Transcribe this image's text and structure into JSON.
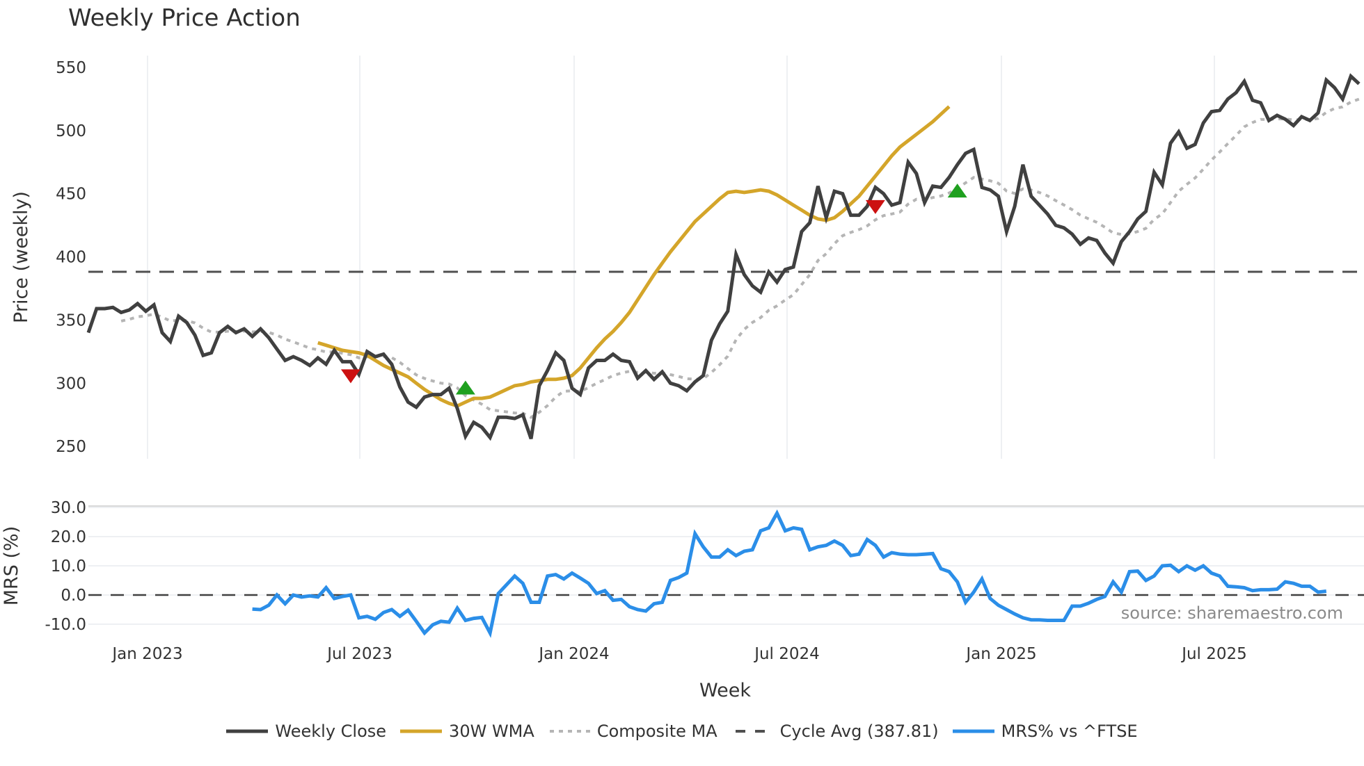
{
  "title": "Weekly Price Action",
  "price_panel": {
    "ylabel": "Price (weekly)",
    "yticks": [
      "550",
      "500",
      "450",
      "400",
      "350",
      "300",
      "250"
    ],
    "ytick_values": [
      550,
      500,
      450,
      400,
      350,
      300,
      250
    ]
  },
  "mrs_panel": {
    "ylabel": "MRS (%)",
    "yticks": [
      "30.0",
      "20.0",
      "10.0",
      "0.0",
      "-10.0"
    ],
    "ytick_values": [
      30,
      20,
      10,
      0,
      -10
    ],
    "source": "source: sharemaestro.com"
  },
  "xaxis": {
    "label": "Week",
    "ticks": [
      "Jan 2023",
      "Jul 2023",
      "Jan 2024",
      "Jul 2024",
      "Jan 2025",
      "Jul 2025"
    ]
  },
  "legend": {
    "items": [
      {
        "label": "Weekly Close",
        "style": "solid",
        "color": "#404040"
      },
      {
        "label": "30W WMA",
        "style": "solid",
        "color": "#D4A52A"
      },
      {
        "label": "Composite MA",
        "style": "dotted",
        "color": "#B5B5B5"
      },
      {
        "label": "Cycle Avg (387.81)",
        "style": "dashed",
        "color": "#505050"
      },
      {
        "label": "MRS% vs ^FTSE",
        "style": "solid",
        "color": "#2B8EE8"
      }
    ]
  },
  "colors": {
    "close": "#404040",
    "wma": "#D4A52A",
    "composite": "#B5B5B5",
    "cycle": "#505050",
    "mrs": "#2B8EE8",
    "buy_marker": "#1FA01F",
    "sell_marker": "#CC1111",
    "grid": "#EEF0F3"
  },
  "chart_data": [
    {
      "type": "line",
      "title": "Weekly Price Action",
      "xlabel": "Week",
      "ylabel": "Price (weekly)",
      "ylim": [
        240,
        555
      ],
      "x_range": [
        "2022-10",
        "2025-10"
      ],
      "x_ticks": [
        "Jan 2023",
        "Jul 2023",
        "Jan 2024",
        "Jul 2024",
        "Jan 2025",
        "Jul 2025"
      ],
      "grid": "vertical",
      "legend_position": "bottom",
      "cycle_average": 387.81,
      "series": [
        {
          "name": "Weekly Close",
          "x_week_index": [
            0,
            1,
            2,
            3,
            4,
            5,
            6,
            7,
            8,
            9,
            10,
            11,
            12,
            13,
            14,
            15,
            16,
            17,
            18,
            19,
            20,
            21,
            22,
            23,
            24,
            25,
            26,
            27,
            28,
            29,
            30,
            31,
            32,
            33,
            34,
            35,
            36,
            37,
            38,
            39,
            40,
            41,
            42,
            43,
            44,
            45,
            46,
            47,
            48,
            49,
            50,
            51,
            52,
            53,
            54,
            55,
            56,
            57,
            58,
            59,
            60,
            61,
            62,
            63,
            64,
            65,
            66,
            67,
            68,
            69,
            70,
            71,
            72,
            73,
            74,
            75,
            76,
            77,
            78,
            79,
            80,
            81,
            82,
            83,
            84,
            85,
            86,
            87,
            88,
            89,
            90,
            91,
            92,
            93,
            94,
            95,
            96,
            97,
            98,
            99,
            100,
            101,
            102,
            103,
            104,
            105,
            106,
            107,
            108,
            109,
            110,
            111,
            112,
            113,
            114,
            115,
            116,
            117,
            118,
            119,
            120,
            121,
            122,
            123,
            124,
            125,
            126,
            127,
            128,
            129,
            130,
            131,
            132,
            133,
            134,
            135,
            136,
            137,
            138,
            139,
            140,
            141,
            142,
            143,
            144,
            145,
            146,
            147,
            148,
            149,
            150,
            151,
            152,
            153,
            154,
            155
          ],
          "values": [
            340,
            359,
            359,
            360,
            356,
            358,
            363,
            357,
            362,
            340,
            333,
            353,
            348,
            338,
            322,
            324,
            340,
            345,
            340,
            343,
            337,
            343,
            336,
            327,
            318,
            321,
            318,
            314,
            320,
            315,
            326,
            317,
            317,
            307,
            325,
            321,
            323,
            315,
            297,
            285,
            281,
            289,
            291,
            291,
            296,
            280,
            258,
            269,
            265,
            257,
            273,
            273,
            272,
            275,
            256,
            298,
            310,
            324,
            318,
            296,
            291,
            312,
            318,
            318,
            323,
            318,
            317,
            304,
            310,
            303,
            309,
            300,
            298,
            294,
            301,
            306,
            334,
            347,
            357,
            402,
            386,
            377,
            372,
            388,
            380,
            390,
            392,
            420,
            427,
            456,
            431,
            452,
            450,
            433,
            433,
            440,
            455,
            450,
            441,
            443,
            475,
            466,
            443,
            456,
            455,
            463,
            473,
            482,
            485,
            455,
            453,
            448,
            420,
            440,
            473,
            448,
            441,
            434,
            425,
            423,
            418,
            410,
            415,
            413,
            403,
            395,
            412,
            420,
            430,
            436,
            467,
            457,
            490,
            499,
            486,
            489,
            506,
            515,
            516,
            525,
            530,
            539,
            524,
            522,
            508,
            512,
            509,
            504,
            511,
            508,
            514,
            540,
            534,
            525,
            543,
            537
          ],
          "color": "#404040"
        },
        {
          "name": "30W WMA",
          "start_week": 28,
          "values": [
            332,
            330,
            328,
            326,
            325,
            324,
            322,
            318,
            314,
            311,
            308,
            305,
            300,
            295,
            291,
            287,
            284,
            282,
            285,
            288,
            288,
            289,
            292,
            295,
            298,
            299,
            301,
            302,
            303,
            303,
            304,
            306,
            312,
            320,
            328,
            335,
            341,
            348,
            356,
            366,
            376,
            386,
            395,
            404,
            412,
            420,
            428,
            434,
            440,
            446,
            451,
            452,
            451,
            452,
            453,
            452,
            449,
            445,
            441,
            437,
            433,
            430,
            429,
            431,
            436,
            442,
            448,
            456,
            464,
            472,
            480,
            487,
            492,
            497,
            502,
            507,
            513,
            519
          ],
          "color": "#D4A52A"
        },
        {
          "name": "Composite MA",
          "values_note": "smoothed trend ~ between close and WMA",
          "color": "#B5B5B5"
        },
        {
          "name": "Cycle Avg (387.81)",
          "values": [
            387.81
          ],
          "style": "dashed",
          "color": "#505050"
        }
      ],
      "markers": [
        {
          "type": "sell",
          "week": 32,
          "value": 306,
          "color": "#CC1111"
        },
        {
          "type": "buy",
          "week": 46,
          "value": 296,
          "color": "#1FA01F"
        },
        {
          "type": "sell",
          "week": 96,
          "value": 440,
          "color": "#CC1111"
        },
        {
          "type": "buy",
          "week": 106,
          "value": 452,
          "color": "#1FA01F"
        }
      ]
    },
    {
      "type": "line",
      "title": "",
      "xlabel": "Week",
      "ylabel": "MRS (%)",
      "ylim": [
        -14,
        31
      ],
      "y_ticks": [
        30,
        20,
        10,
        0,
        -10
      ],
      "series": [
        {
          "name": "MRS% vs ^FTSE",
          "start_week": 20,
          "values": [
            -4.8,
            -5,
            -3.5,
            0,
            -3,
            0,
            -0.7,
            -0.3,
            -0.7,
            2.5,
            -1.2,
            -0.5,
            0,
            -7.8,
            -7.3,
            -8.3,
            -6,
            -5,
            -7.3,
            -5.2,
            -9,
            -13,
            -10.2,
            -9,
            -9.3,
            -4.5,
            -8.7,
            -8,
            -7.7,
            -13,
            0.5,
            3.5,
            6.5,
            4,
            -2.5,
            -2.5,
            6.5,
            7,
            5.5,
            7.5,
            5.8,
            4,
            0.5,
            1.5,
            -1.8,
            -1.5,
            -4,
            -5,
            -5.5,
            -3,
            -2.5,
            5,
            6,
            7.5,
            21,
            16.5,
            13,
            13,
            15.5,
            13.5,
            15,
            15.5,
            22,
            23,
            28,
            22,
            23,
            22.5,
            15.5,
            16.5,
            17,
            18.5,
            17,
            13.5,
            14,
            19,
            17,
            13,
            14.5,
            14,
            13.8,
            13.8,
            14,
            14.2,
            9,
            8,
            4.5,
            -2.5,
            1,
            5.5,
            -1.2,
            -3.5,
            -5,
            -6.5,
            -7.8,
            -8.5,
            -8.5,
            -8.7,
            -8.7,
            -8.7,
            -3.8,
            -3.8,
            -2.8,
            -1.5,
            -0.5,
            4.5,
            1,
            8,
            8.2,
            5,
            6.5,
            10,
            10.2,
            8,
            10,
            8.5,
            10,
            7.5,
            6.5,
            3,
            2.8,
            2.5,
            1.5,
            1.8,
            1.8,
            2,
            4.5,
            4,
            3,
            3,
            1,
            1.3
          ],
          "color": "#2B8EE8"
        }
      ],
      "zero_line": 0,
      "annotation": "source: sharemaestro.com"
    }
  ]
}
